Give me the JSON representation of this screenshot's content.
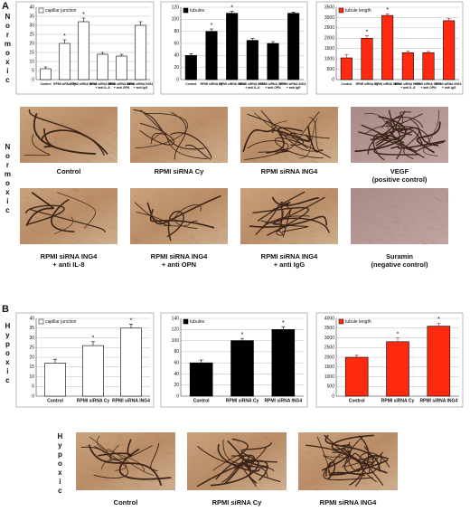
{
  "panel_labels": [
    "A",
    "B"
  ],
  "condition_labels": {
    "normoxic": "Normoxic",
    "hypoxic": "Hypoxic"
  },
  "micrographs": {
    "normoxic": [
      [
        "Control"
      ],
      [
        "RPMI siRNA Cy"
      ],
      [
        "RPMI siRNA ING4"
      ],
      [
        "VEGF",
        "(positive control)"
      ],
      [
        "RPMI siRNA ING4",
        "+ anti IL-8"
      ],
      [
        "RPMI siRNA ING4",
        "+ anti OPN"
      ],
      [
        "RPMI siRNA ING4",
        "+ anti IgG"
      ],
      [
        "Suramin",
        "(negative control)"
      ]
    ],
    "hypoxic": [
      [
        "Control"
      ],
      [
        "RPMI siRNA Cy"
      ],
      [
        "RPMI siRNA ING4"
      ]
    ]
  },
  "chart_data": [
    {
      "type": "bar",
      "categories": [
        "Control",
        "RPMI siRNA Cy",
        "RPMI siRNA ING4",
        "RPMI siRNA ING4 + anti IL-8",
        "RPMI siRNA ING4 + anti OPN",
        "RPMI siRNA ING4 + anti IgG"
      ],
      "series": [
        {
          "name": "capillar junction",
          "color": "#ffffff",
          "values": [
            6,
            20,
            32,
            14,
            13,
            30
          ],
          "errors": [
            1,
            2,
            2,
            1,
            1,
            2
          ]
        }
      ],
      "significance": [
        null,
        "*",
        "*",
        null,
        null,
        null
      ],
      "ylim": [
        0,
        40
      ],
      "yticks": [
        0,
        5,
        10,
        15,
        20,
        25,
        30,
        35,
        40
      ],
      "grid": true
    },
    {
      "type": "bar",
      "categories": [
        "Control",
        "RPMI siRNA Cy",
        "RPMI siRNA ING4",
        "RPMI siRNA ING4 + anti IL-8",
        "RPMI siRNA ING4 + anti OPN",
        "RPMI siRNA ING4 + anti IgG"
      ],
      "series": [
        {
          "name": "tubules",
          "color": "#000000",
          "values": [
            40,
            80,
            110,
            65,
            60,
            110
          ],
          "errors": [
            3,
            4,
            3,
            3,
            3,
            2
          ]
        }
      ],
      "significance": [
        null,
        "*",
        "*",
        null,
        null,
        null
      ],
      "ylim": [
        0,
        120
      ],
      "yticks": [
        0,
        20,
        40,
        60,
        80,
        100,
        120
      ],
      "grid": true
    },
    {
      "type": "bar",
      "categories": [
        "Control",
        "RPMI siRNA Cy",
        "RPMI siRNA ING4",
        "RPMI siRNA ING4 + anti IL-8",
        "RPMI siRNA ING4 + anti OPN",
        "RPMI siRNA ING4 + anti IgG"
      ],
      "series": [
        {
          "name": "tubule length",
          "color": "#ff2a10",
          "values": [
            1050,
            2000,
            3100,
            1300,
            1300,
            2850
          ],
          "errors": [
            150,
            120,
            80,
            80,
            60,
            100
          ]
        }
      ],
      "significance": [
        null,
        "*",
        "*",
        null,
        null,
        null
      ],
      "ylim": [
        0,
        3500
      ],
      "yticks": [
        0,
        500,
        1000,
        1500,
        2000,
        2500,
        3000,
        3500
      ],
      "grid": true
    },
    {
      "type": "bar",
      "categories": [
        "Control",
        "RPMI siRNA Cy",
        "RPMI siRNA ING4"
      ],
      "series": [
        {
          "name": "capillar junction",
          "color": "#ffffff",
          "values": [
            17,
            26,
            35
          ],
          "errors": [
            2,
            2,
            2
          ]
        }
      ],
      "significance": [
        null,
        "*",
        "*"
      ],
      "ylim": [
        0,
        40
      ],
      "yticks": [
        0,
        5,
        10,
        15,
        20,
        25,
        30,
        35,
        40
      ],
      "grid": true
    },
    {
      "type": "bar",
      "categories": [
        "Control",
        "RPMI siRNA Cy",
        "RPMI siRNA ING4"
      ],
      "series": [
        {
          "name": "tubules",
          "color": "#000000",
          "values": [
            60,
            100,
            120
          ],
          "errors": [
            5,
            4,
            5
          ]
        }
      ],
      "significance": [
        null,
        "*",
        "*"
      ],
      "ylim": [
        0,
        140
      ],
      "yticks": [
        0,
        20,
        40,
        60,
        80,
        100,
        120,
        140
      ],
      "grid": true
    },
    {
      "type": "bar",
      "categories": [
        "Control",
        "RPMI siRNA Cy",
        "RPMI siRNA ING4"
      ],
      "series": [
        {
          "name": "tubule length",
          "color": "#ff2a10",
          "values": [
            2000,
            2800,
            3600
          ],
          "errors": [
            100,
            200,
            150
          ]
        }
      ],
      "significance": [
        null,
        "*",
        "*"
      ],
      "ylim": [
        0,
        4000
      ],
      "yticks": [
        0,
        500,
        1000,
        1500,
        2000,
        2500,
        3000,
        3500,
        4000
      ],
      "grid": true
    }
  ]
}
